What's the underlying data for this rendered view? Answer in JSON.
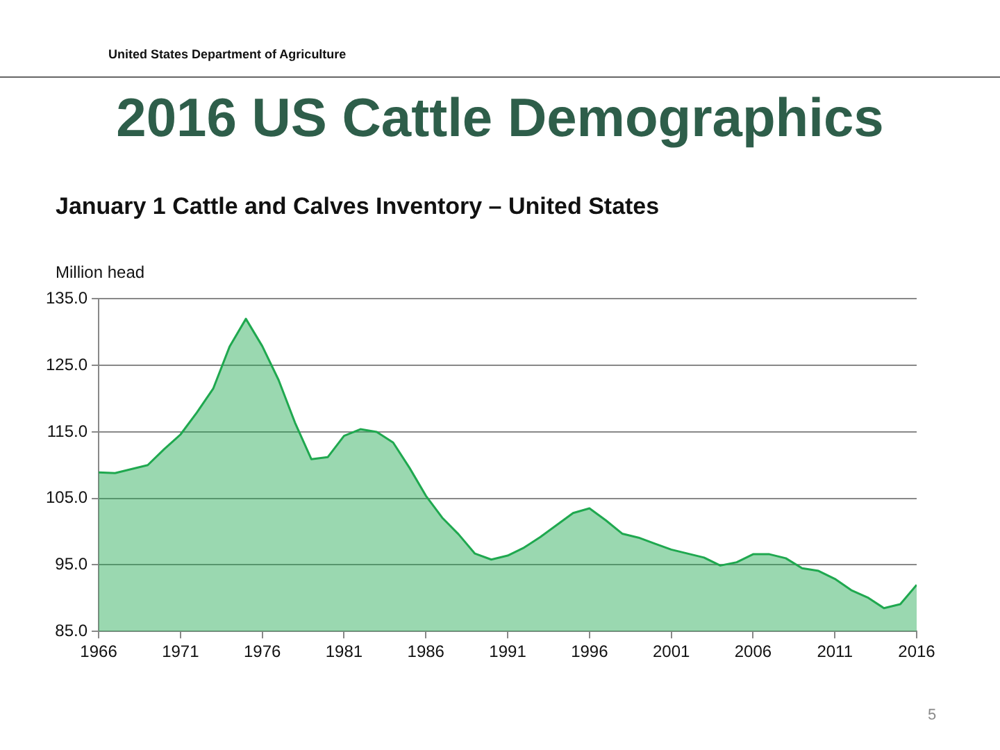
{
  "chart_data": {
    "type": "area",
    "title": "2016 US Cattle Demographics",
    "subtitle": "January 1 Cattle and Calves Inventory – United States",
    "ylabel": "Million head",
    "annotations": [
      "United States Department of Agriculture",
      "5"
    ],
    "x": [
      1966,
      1967,
      1968,
      1969,
      1970,
      1971,
      1972,
      1973,
      1974,
      1975,
      1976,
      1977,
      1978,
      1979,
      1980,
      1981,
      1982,
      1983,
      1984,
      1985,
      1986,
      1987,
      1988,
      1989,
      1990,
      1991,
      1992,
      1993,
      1994,
      1995,
      1996,
      1997,
      1998,
      1999,
      2000,
      2001,
      2002,
      2003,
      2004,
      2005,
      2006,
      2007,
      2008,
      2009,
      2010,
      2011,
      2012,
      2013,
      2014,
      2015,
      2016
    ],
    "series": [
      {
        "color": "#1fa84f",
        "values": [
          108.9,
          108.8,
          109.4,
          110.0,
          112.4,
          114.6,
          117.9,
          121.5,
          127.8,
          132.0,
          127.9,
          122.8,
          116.4,
          110.9,
          111.2,
          114.4,
          115.4,
          115.0,
          113.4,
          109.6,
          105.4,
          102.1,
          99.6,
          96.7,
          95.8,
          96.4,
          97.6,
          99.2,
          101.0,
          102.8,
          103.5,
          101.7,
          99.7,
          99.1,
          98.2,
          97.3,
          96.7,
          96.1,
          94.9,
          95.4,
          96.6,
          96.6,
          96.0,
          94.5,
          94.1,
          92.9,
          91.2,
          90.1,
          88.5,
          89.1,
          92.0
        ]
      }
    ],
    "xlim": [
      1966,
      2016
    ],
    "xticks": [
      1966,
      1971,
      1976,
      1981,
      1986,
      1991,
      1996,
      2001,
      2006,
      2011,
      2016
    ],
    "ylim": [
      85,
      135
    ],
    "yticks": [
      {
        "value": 85,
        "label": "85.0"
      },
      {
        "value": 95,
        "label": "95.0"
      },
      {
        "value": 105,
        "label": "105.0"
      },
      {
        "value": 115,
        "label": "115.0"
      },
      {
        "value": 125,
        "label": "125.0"
      },
      {
        "value": 135,
        "label": "135.0"
      }
    ],
    "grid": "y",
    "legend": false,
    "marker": "none"
  }
}
